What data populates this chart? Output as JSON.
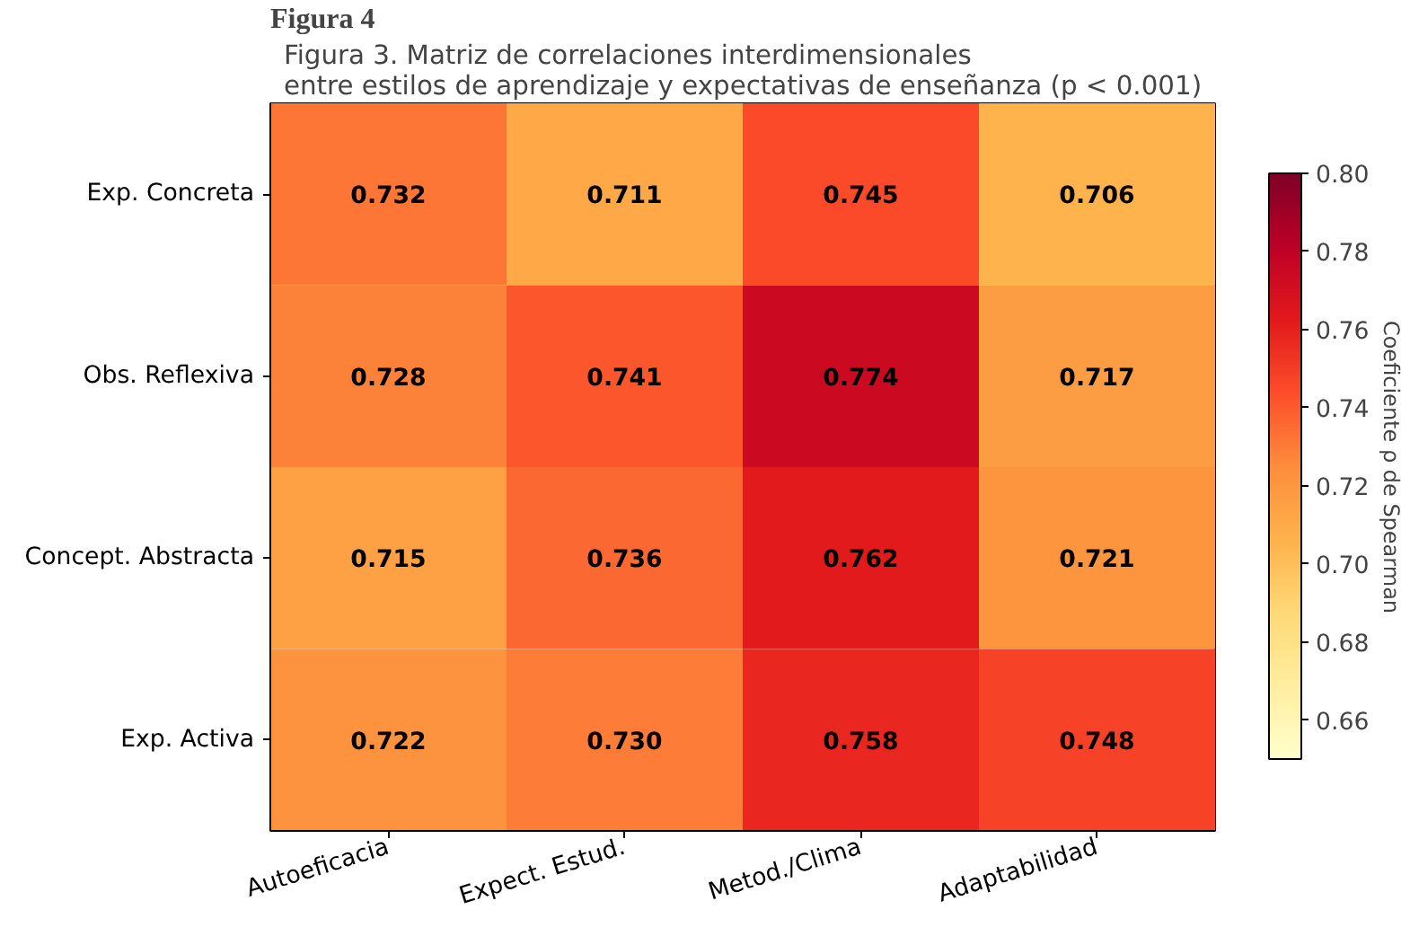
{
  "chart_data": {
    "type": "heatmap",
    "title": "Figura 3. Matriz de correlaciones interdimensionales\nentre estilos de aprendizaje y expectativas de enseñanza (p < 0.001)",
    "annotations": [
      "Figura 4"
    ],
    "categories": [
      "Autoeficacia",
      "Expect. Estud.",
      "Metod./Clima",
      "Adaptabilidad"
    ],
    "y_categories": [
      "Exp. Concreta",
      "Obs. Reflexiva",
      "Concept. Abstracta",
      "Exp. Activa"
    ],
    "cells": [
      [
        0.732,
        0.711,
        0.745,
        0.706
      ],
      [
        0.728,
        0.741,
        0.774,
        0.717
      ],
      [
        0.715,
        0.736,
        0.762,
        0.721
      ],
      [
        0.722,
        0.73,
        0.758,
        0.748
      ]
    ],
    "cell_labels": [
      [
        "0.732",
        "0.711",
        "0.745",
        "0.706"
      ],
      [
        "0.728",
        "0.741",
        "0.774",
        "0.717"
      ],
      [
        "0.715",
        "0.736",
        "0.762",
        "0.721"
      ],
      [
        "0.722",
        "0.730",
        "0.758",
        "0.748"
      ]
    ],
    "clabel": "Coeficiente ρ de Spearman",
    "clim": [
      0.65,
      0.8
    ],
    "cticks": [
      0.66,
      0.68,
      {
        "value": 0.7,
        "label": "0.70"
      },
      0.72,
      0.74,
      0.76,
      0.78,
      {
        "value": 0.8,
        "label": "0.80"
      }
    ]
  }
}
